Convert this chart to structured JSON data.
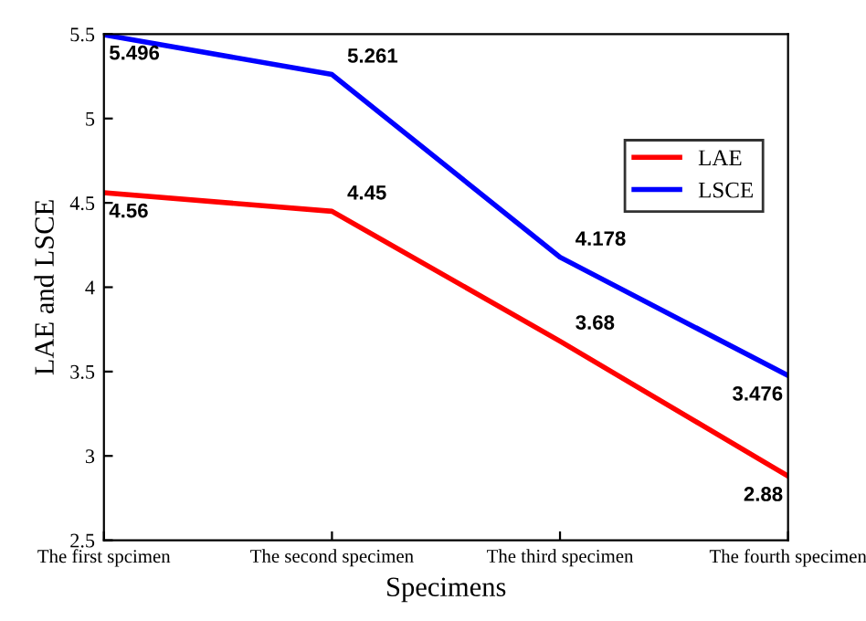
{
  "chart_data": {
    "type": "line",
    "xlabel": "Specimens",
    "ylabel": "LAE and LSCE",
    "categories": [
      "The first spcimen",
      "The second specimen",
      "The third specimen",
      "The fourth specimen"
    ],
    "series": [
      {
        "name": "LAE",
        "color": "#ff0000",
        "values": [
          4.56,
          4.45,
          3.68,
          2.88
        ]
      },
      {
        "name": "LSCE",
        "color": "#0000ff",
        "values": [
          5.496,
          5.261,
          4.178,
          3.476
        ]
      }
    ],
    "ylim": [
      2.5,
      5.5
    ],
    "yticks": [
      2.5,
      3,
      3.5,
      4,
      4.5,
      5,
      5.5
    ],
    "grid": false,
    "legend": "right",
    "data_labels": true,
    "marker": "none",
    "line_style": "solid"
  }
}
